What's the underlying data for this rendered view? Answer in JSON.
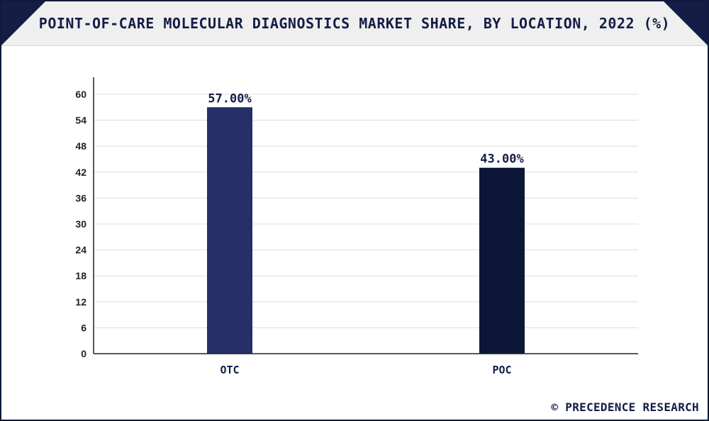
{
  "header": {
    "title": "POINT-OF-CARE MOLECULAR DIAGNOSTICS MARKET SHARE, BY LOCATION, 2022 (%)"
  },
  "watermark": "© PRECEDENCE RESEARCH",
  "colors": {
    "border": "#101a3a",
    "header_bg": "#efefef",
    "corner_accent": "#141d45",
    "grid": "#dddddd",
    "axis": "#222222"
  },
  "chart_data": {
    "type": "bar",
    "title": "POINT-OF-CARE MOLECULAR DIAGNOSTICS MARKET SHARE, BY LOCATION, 2022 (%)",
    "categories": [
      "OTC",
      "POC"
    ],
    "values": [
      57.0,
      43.0
    ],
    "data_labels": [
      "57.00%",
      "43.00%"
    ],
    "bar_colors": [
      "#252f68",
      "#0c1738"
    ],
    "xlabel": "",
    "ylabel": "",
    "ylim": [
      0,
      60
    ],
    "yticks": [
      0,
      6,
      12,
      18,
      24,
      30,
      36,
      42,
      48,
      54,
      60
    ],
    "grid": true,
    "legend": "none"
  }
}
